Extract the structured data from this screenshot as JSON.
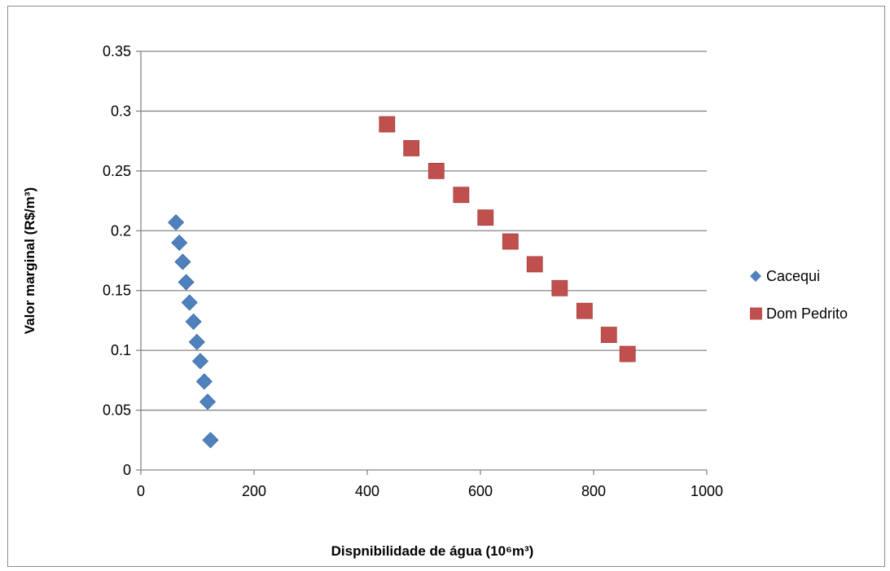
{
  "chart_data": {
    "type": "scatter",
    "title": "",
    "xlabel": "Dispnibilidade de água (10⁶m³)",
    "ylabel": "Valor marginal (R$/m³)",
    "xlim": [
      0,
      1000
    ],
    "ylim": [
      0,
      0.35
    ],
    "x_ticks": [
      0,
      200,
      400,
      600,
      800,
      1000
    ],
    "y_ticks": [
      0,
      0.05,
      0.1,
      0.15,
      0.2,
      0.25,
      0.3,
      0.35
    ],
    "x_tick_labels": [
      "0",
      "200",
      "400",
      "600",
      "800",
      "1000"
    ],
    "y_tick_labels": [
      "0",
      "0.05",
      "0.1",
      "0.15",
      "0.2",
      "0.25",
      "0.3",
      "0.35"
    ],
    "grid": "horizontal",
    "legend_position": "right",
    "series": [
      {
        "name": "Cacequi",
        "marker": "diamond",
        "color": "#4F81BD",
        "points": [
          [
            62,
            0.207
          ],
          [
            68,
            0.19
          ],
          [
            74,
            0.174
          ],
          [
            80,
            0.157
          ],
          [
            86,
            0.14
          ],
          [
            93,
            0.124
          ],
          [
            99,
            0.107
          ],
          [
            105,
            0.091
          ],
          [
            112,
            0.074
          ],
          [
            118,
            0.057
          ],
          [
            123,
            0.025
          ]
        ]
      },
      {
        "name": "Dom Pedrito",
        "marker": "square",
        "color": "#C0504D",
        "points": [
          [
            435,
            0.289
          ],
          [
            478,
            0.269
          ],
          [
            522,
            0.25
          ],
          [
            566,
            0.23
          ],
          [
            609,
            0.211
          ],
          [
            653,
            0.191
          ],
          [
            696,
            0.172
          ],
          [
            740,
            0.152
          ],
          [
            784,
            0.133
          ],
          [
            827,
            0.113
          ],
          [
            860,
            0.097
          ]
        ]
      }
    ]
  }
}
